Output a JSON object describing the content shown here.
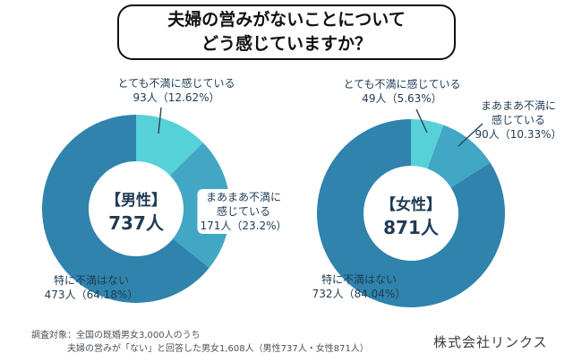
{
  "title": {
    "line1": "夫婦の営みがないことについて",
    "line2": "どう感じていますか？"
  },
  "colors": {
    "very": "#57D1D8",
    "somewhat": "#41A7C4",
    "none": "#2F83AC",
    "label_text": "#1F3B54",
    "title_text": "#101010",
    "footer_text": "#4A5158",
    "leader_line": "#2E4254"
  },
  "chart_data": [
    {
      "type": "pie",
      "variant": "donut",
      "group": "男性",
      "start_angle_deg": 0,
      "direction": "clockwise",
      "total": 737,
      "segments": [
        {
          "label": "とても不満に感じている",
          "count": 93,
          "percent": 12.62,
          "color_key": "very"
        },
        {
          "label": "まあまあ不満に感じている",
          "count": 171,
          "percent": 23.2,
          "color_key": "somewhat"
        },
        {
          "label": "特に不満はない",
          "count": 473,
          "percent": 64.18,
          "color_key": "none"
        }
      ]
    },
    {
      "type": "pie",
      "variant": "donut",
      "group": "女性",
      "start_angle_deg": 0,
      "direction": "clockwise",
      "total": 871,
      "segments": [
        {
          "label": "とても不満に感じている",
          "count": 49,
          "percent": 5.63,
          "color_key": "very"
        },
        {
          "label": "まあまあ不満に感じている",
          "count": 90,
          "percent": 10.33,
          "color_key": "somewhat"
        },
        {
          "label": "特に不満はない",
          "count": 732,
          "percent": 84.04,
          "color_key": "none"
        }
      ]
    }
  ],
  "callouts": {
    "male": {
      "center": [
        "【男性】",
        "737人"
      ],
      "very": [
        "とても不満に感じている",
        "93人（12.62%）"
      ],
      "somewhat": [
        "まあまあ不満に",
        "感じている",
        "171人（23.2%）"
      ],
      "none": [
        "特に不満はない",
        "473人（64.18%）"
      ]
    },
    "female": {
      "center": [
        "【女性】",
        "871人"
      ],
      "very": [
        "とても不満に感じている",
        "49人（5.63%）"
      ],
      "somewhat": [
        "まあまあ不満に",
        "感じている",
        "90人（10.33%）"
      ],
      "none": [
        "特に不満はない",
        "732人（84.04%）"
      ]
    }
  },
  "footer": {
    "line1": "調査対象：全国の既婚男女3,000人のうち",
    "line2": "夫婦の営みが「ない」と回答した男女1,608人（男性737人・女性871人）",
    "company": "株式会社リンクス"
  }
}
